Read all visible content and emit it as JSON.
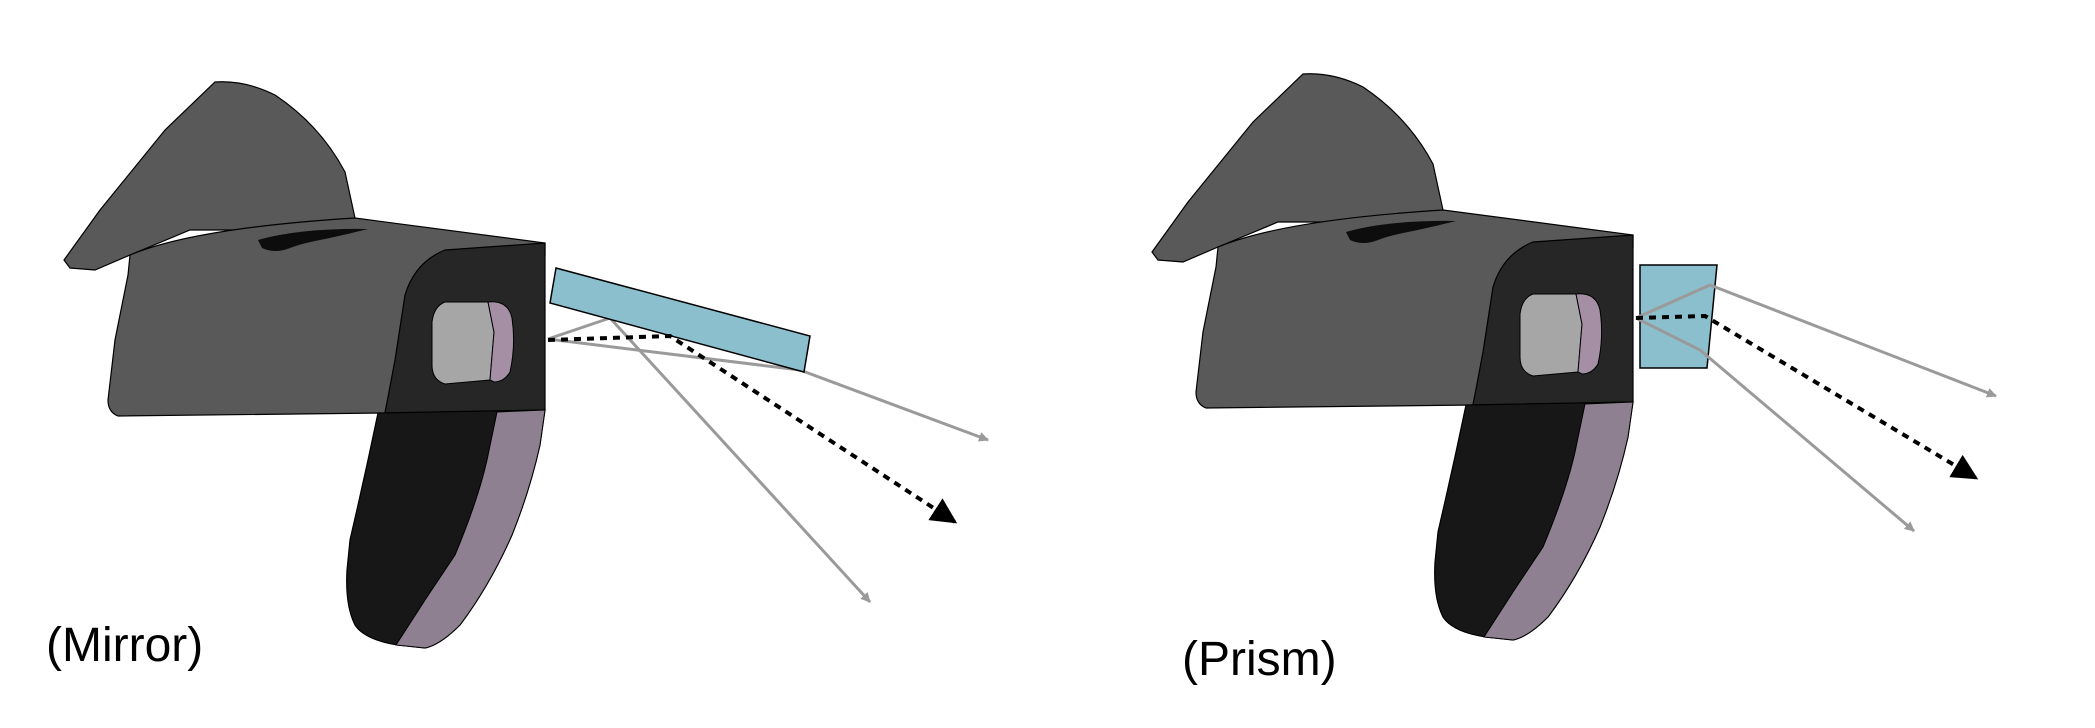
{
  "panels": [
    {
      "id": "mirror",
      "caption": "(Mirror)",
      "optic": "mirror"
    },
    {
      "id": "prism",
      "caption": "(Prism)",
      "optic": "prism"
    }
  ],
  "colors": {
    "background": "#ffffff",
    "headset_top": "#595959",
    "headset_front": "#262626",
    "headset_strap": "#171717",
    "strap_accent": "#8e8091",
    "lens_grey": "#a6a6a6",
    "lens_purple": "#a48fa5",
    "optic_fill": "#8bbfcd",
    "ray_grey": "#9a9a9a",
    "ray_black": "#000000"
  }
}
